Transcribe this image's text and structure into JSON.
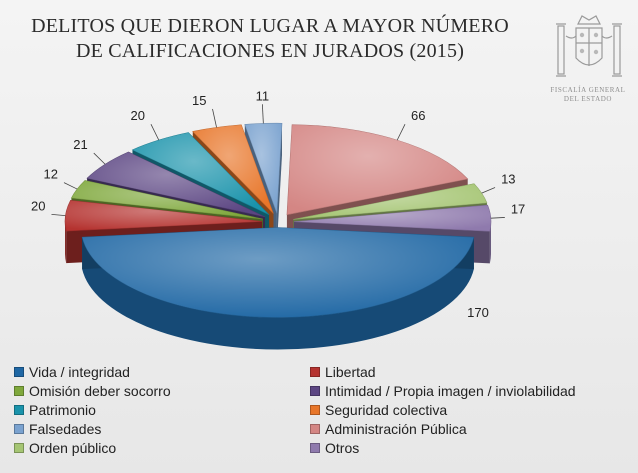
{
  "title": {
    "line1": "DELITOS QUE DIERON LUGAR A MAYOR NÚMERO",
    "line2": "DE CALIFICACIONES EN JURADOS (2015)"
  },
  "logo": {
    "line1": "FISCALÍA GENERAL",
    "line2": "DEL ESTADO"
  },
  "colors": {
    "Vida / integridad": "#1f67a4",
    "Libertad": "#b53330",
    "Omisión deber socorro": "#7fa83c",
    "Intimidad / Propia imagen / inviolabilidad": "#5c4683",
    "Patrimonio": "#1a93ab",
    "Seguridad colectiva": "#e8762a",
    "Falsedades": "#7aa2cf",
    "Administración Pública": "#d48684",
    "Orden público": "#a5c573",
    "Otros": "#8f7aad"
  },
  "chart_data": {
    "type": "pie",
    "style": "3d-exploded",
    "categories": [
      "Vida / integridad",
      "Libertad",
      "Omisión deber socorro",
      "Intimidad / Propia imagen / inviolabilidad",
      "Patrimonio",
      "Seguridad colectiva",
      "Falsedades",
      "Administración Pública",
      "Orden público",
      "Otros"
    ],
    "values": [
      170,
      20,
      12,
      21,
      20,
      15,
      11,
      66,
      13,
      17
    ],
    "legend_position": "bottom"
  }
}
